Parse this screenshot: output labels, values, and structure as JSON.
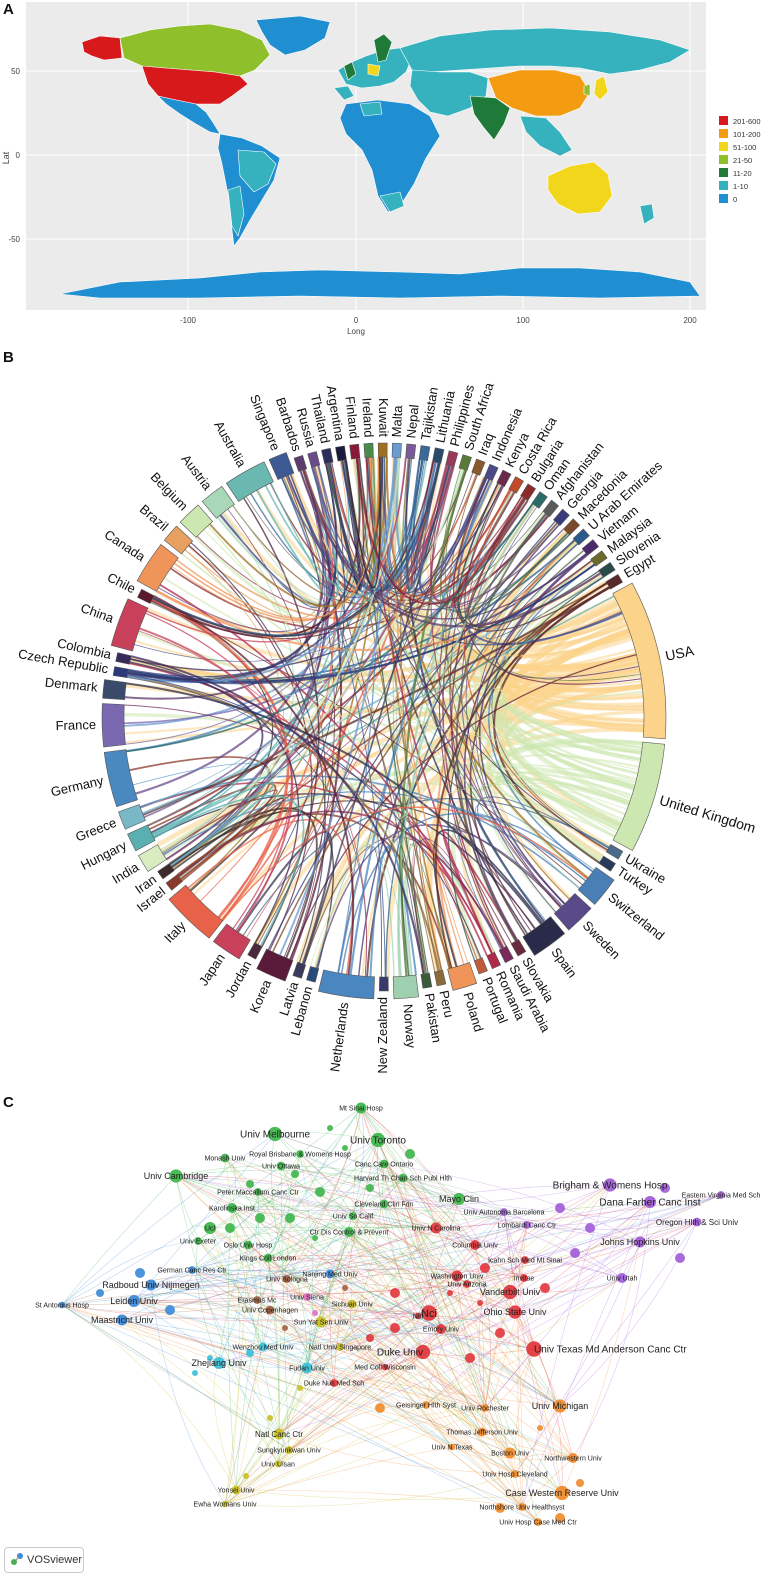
{
  "panel_a": {
    "letter": "A",
    "xlabel": "Long",
    "ylabel": "Lat",
    "x_ticks": [
      "-100",
      "0",
      "100",
      "200"
    ],
    "y_ticks": [
      "50",
      "0",
      "-50"
    ],
    "legend": [
      {
        "label": "201-600",
        "color": "#d7191c"
      },
      {
        "label": "101-200",
        "color": "#f39c12"
      },
      {
        "label": "51-100",
        "color": "#f2d61b"
      },
      {
        "label": "21-50",
        "color": "#8fbf2b"
      },
      {
        "label": "11-20",
        "color": "#1f7a3a"
      },
      {
        "label": "1-10",
        "color": "#35b2bd"
      },
      {
        "label": "0",
        "color": "#1f8fd1"
      }
    ]
  },
  "panel_b": {
    "letter": "B",
    "countries": [
      {
        "name": "Singapore",
        "color": "#3d5a94"
      },
      {
        "name": "Barbados",
        "color": "#5c3b6e"
      },
      {
        "name": "Russia",
        "color": "#6b4c8a"
      },
      {
        "name": "Thailand",
        "color": "#2d2d5c"
      },
      {
        "name": "Argentina",
        "color": "#1a1a3a"
      },
      {
        "name": "Finland",
        "color": "#8b1a3a"
      },
      {
        "name": "Ireland",
        "color": "#4a8a4a"
      },
      {
        "name": "Kuwait",
        "color": "#a07020"
      },
      {
        "name": "Malta",
        "color": "#6a9bd1"
      },
      {
        "name": "Nepal",
        "color": "#7a5a9a"
      },
      {
        "name": "Tajikistan",
        "color": "#3a6a9a"
      },
      {
        "name": "Lithuania",
        "color": "#2a4a6a"
      },
      {
        "name": "Philippines",
        "color": "#9a3a5a"
      },
      {
        "name": "South Africa",
        "color": "#5a7a3a"
      },
      {
        "name": "Iraq",
        "color": "#8a5a2a"
      },
      {
        "name": "Indonesia",
        "color": "#4a4a8a"
      },
      {
        "name": "Kenya",
        "color": "#6a2a4a"
      },
      {
        "name": "Costa Rica",
        "color": "#c04a2a"
      },
      {
        "name": "Bulgaria",
        "color": "#8a2a2a"
      },
      {
        "name": "Oman",
        "color": "#2a6a6a"
      },
      {
        "name": "Afghanistan",
        "color": "#5a5a5a"
      },
      {
        "name": "Georgia",
        "color": "#3a3a7a"
      },
      {
        "name": "Macedonia",
        "color": "#7a4a2a"
      },
      {
        "name": "U Arab Emirates",
        "color": "#2a5a8a"
      },
      {
        "name": "Vietnam",
        "color": "#4a2a6a"
      },
      {
        "name": "Malaysia",
        "color": "#6a6a2a"
      },
      {
        "name": "Slovenia",
        "color": "#2a4a4a"
      },
      {
        "name": "Egypt",
        "color": "#5a2a2a"
      },
      {
        "name": "USA",
        "color": "#fbd38a"
      },
      {
        "name": "United Kingdom",
        "color": "#cde7b0"
      },
      {
        "name": "Ukraine",
        "color": "#4a6a8a"
      },
      {
        "name": "Turkey",
        "color": "#2a3a5a"
      },
      {
        "name": "Switzerland",
        "color": "#4a7fb5"
      },
      {
        "name": "Sweden",
        "color": "#5a4a8a"
      },
      {
        "name": "Spain",
        "color": "#2a2a4a"
      },
      {
        "name": "Slovakia",
        "color": "#6a2a3a"
      },
      {
        "name": "Saudi Arabia",
        "color": "#7a2a5a"
      },
      {
        "name": "Romania",
        "color": "#b02a4a"
      },
      {
        "name": "Portugal",
        "color": "#c05a3a"
      },
      {
        "name": "Poland",
        "color": "#f0955a"
      },
      {
        "name": "Peru",
        "color": "#8a6a3a"
      },
      {
        "name": "Pakistan",
        "color": "#3a5a3a"
      },
      {
        "name": "Norway",
        "color": "#9ed0b0"
      },
      {
        "name": "New Zealand",
        "color": "#3a3a6a"
      },
      {
        "name": "Netherlands",
        "color": "#4a86c0"
      },
      {
        "name": "Lebanon",
        "color": "#2a4a7a"
      },
      {
        "name": "Latvia",
        "color": "#3a3a5a"
      },
      {
        "name": "Korea",
        "color": "#5a1a3a"
      },
      {
        "name": "Jordan",
        "color": "#4a2a3a"
      },
      {
        "name": "Japan",
        "color": "#c8405a"
      },
      {
        "name": "Italy",
        "color": "#e8624a"
      },
      {
        "name": "Israel",
        "color": "#8a3a2a"
      },
      {
        "name": "Iran",
        "color": "#3a2a2a"
      },
      {
        "name": "India",
        "color": "#d8ecc0"
      },
      {
        "name": "Hungary",
        "color": "#5ab0b0"
      },
      {
        "name": "Greece",
        "color": "#7ab8c8"
      },
      {
        "name": "Germany",
        "color": "#4a88c0"
      },
      {
        "name": "France",
        "color": "#7a68b0"
      },
      {
        "name": "Denmark",
        "color": "#3a4a6a"
      },
      {
        "name": "Czech Republic",
        "color": "#2a3a7a"
      },
      {
        "name": "Colombia",
        "color": "#3a2a5a"
      },
      {
        "name": "China",
        "color": "#c8405a"
      },
      {
        "name": "Chile",
        "color": "#5a1a2a"
      },
      {
        "name": "Canada",
        "color": "#f0955a"
      },
      {
        "name": "Brazil",
        "color": "#e8a060"
      },
      {
        "name": "Belgium",
        "color": "#cde7b0"
      },
      {
        "name": "Austria",
        "color": "#a8d8b8"
      },
      {
        "name": "Australia",
        "color": "#6ab8b0"
      }
    ]
  },
  "panel_c": {
    "letter": "C",
    "badge": "VOSviewer",
    "cluster_colors": {
      "green": "#3cb54a",
      "purple": "#a05ad8",
      "red": "#e0353b",
      "blue": "#3a88d8",
      "cyan": "#38c0d8",
      "yellow": "#c8c020",
      "orange": "#f08a28",
      "brown": "#a06040",
      "pink": "#e070c0"
    },
    "labels": [
      {
        "text": "Mt Sinai Hosp",
        "cluster": "green"
      },
      {
        "text": "Univ Melbourne",
        "cluster": "green"
      },
      {
        "text": "Univ Toronto",
        "cluster": "green"
      },
      {
        "text": "Monash Univ",
        "cluster": "green"
      },
      {
        "text": "Royal Brisbane & Womens Hosp",
        "cluster": "green"
      },
      {
        "text": "Univ Ottawa",
        "cluster": "green"
      },
      {
        "text": "Canc Care Ontario",
        "cluster": "green"
      },
      {
        "text": "Univ Cambridge",
        "cluster": "green"
      },
      {
        "text": "Harvard Th Chan Sch Publ Hlth",
        "cluster": "green"
      },
      {
        "text": "Peter Maccallum Canc Ctr",
        "cluster": "green"
      },
      {
        "text": "Karolinska Inst",
        "cluster": "green"
      },
      {
        "text": "Cleveland Clin Fdn",
        "cluster": "green"
      },
      {
        "text": "Mayo Clin",
        "cluster": "green"
      },
      {
        "text": "Univ So Calif",
        "cluster": "green"
      },
      {
        "text": "Ucl",
        "cluster": "green"
      },
      {
        "text": "Ctr Dis Control & Prevent",
        "cluster": "green"
      },
      {
        "text": "Univ Exeter",
        "cluster": "green"
      },
      {
        "text": "Oslo Univ Hosp",
        "cluster": "green"
      },
      {
        "text": "Kings Coll London",
        "cluster": "green"
      },
      {
        "text": "Brigham & Womens Hosp",
        "cluster": "purple"
      },
      {
        "text": "Eastern Virginia Med Sch",
        "cluster": "purple"
      },
      {
        "text": "Dana Farber Canc Inst",
        "cluster": "purple"
      },
      {
        "text": "Oregon Hlth & Sci Univ",
        "cluster": "purple"
      },
      {
        "text": "Johns Hopkins Univ",
        "cluster": "purple"
      },
      {
        "text": "Univ Utah",
        "cluster": "purple"
      },
      {
        "text": "Univ Autonoma Barcelona",
        "cluster": "purple"
      },
      {
        "text": "Lombardi Canc Ctr",
        "cluster": "purple"
      },
      {
        "text": "Univ N Carolina",
        "cluster": "red"
      },
      {
        "text": "Columbia Univ",
        "cluster": "red"
      },
      {
        "text": "Icahn Sch Med Mt Sinai",
        "cluster": "red"
      },
      {
        "text": "Washington Univ",
        "cluster": "red"
      },
      {
        "text": "Invitae",
        "cluster": "red"
      },
      {
        "text": "Univ Arizona",
        "cluster": "red"
      },
      {
        "text": "Vanderbilt Univ",
        "cluster": "red"
      },
      {
        "text": "Nci",
        "cluster": "red"
      },
      {
        "text": "Ohio State Univ",
        "cluster": "red"
      },
      {
        "text": "Emory Univ",
        "cluster": "red"
      },
      {
        "text": "Duke Univ",
        "cluster": "red"
      },
      {
        "text": "Univ Texas Md Anderson Canc Ctr",
        "cluster": "red"
      },
      {
        "text": "Med Coll Wisconsin",
        "cluster": "red"
      },
      {
        "text": "Nih",
        "cluster": "red"
      },
      {
        "text": "Duke Nus Med Sch",
        "cluster": "red"
      },
      {
        "text": "German Canc Res Ctr",
        "cluster": "blue"
      },
      {
        "text": "Radboud Univ Nijmegen",
        "cluster": "blue"
      },
      {
        "text": "St Antonius Hosp",
        "cluster": "blue"
      },
      {
        "text": "Leiden Univ",
        "cluster": "blue"
      },
      {
        "text": "Maastricht Univ",
        "cluster": "blue"
      },
      {
        "text": "Univ Bologna",
        "cluster": "brown"
      },
      {
        "text": "Nanjing Med Univ",
        "cluster": "blue"
      },
      {
        "text": "Erasmus Mc",
        "cluster": "brown"
      },
      {
        "text": "Univ Siena",
        "cluster": "pink"
      },
      {
        "text": "Univ Copenhagen",
        "cluster": "brown"
      },
      {
        "text": "Sichuan Univ",
        "cluster": "yellow"
      },
      {
        "text": "Sun Yat Sen Univ",
        "cluster": "yellow"
      },
      {
        "text": "Natl Univ Singapore",
        "cluster": "yellow"
      },
      {
        "text": "Wenzhou Med Univ",
        "cluster": "cyan"
      },
      {
        "text": "Zhejiang Univ",
        "cluster": "cyan"
      },
      {
        "text": "Fudan Univ",
        "cluster": "cyan"
      },
      {
        "text": "Natl Canc Ctr",
        "cluster": "yellow"
      },
      {
        "text": "Sungkyunkwan Univ",
        "cluster": "yellow"
      },
      {
        "text": "Univ Ulsan",
        "cluster": "yellow"
      },
      {
        "text": "Yonsei Univ",
        "cluster": "yellow"
      },
      {
        "text": "Ewha Womans Univ",
        "cluster": "yellow"
      },
      {
        "text": "Geisinger Hlth Syst",
        "cluster": "orange"
      },
      {
        "text": "Univ Rochester",
        "cluster": "orange"
      },
      {
        "text": "Univ Michigan",
        "cluster": "orange"
      },
      {
        "text": "Thomas Jefferson Univ",
        "cluster": "orange"
      },
      {
        "text": "Univ N Texas",
        "cluster": "orange"
      },
      {
        "text": "Boston Univ",
        "cluster": "orange"
      },
      {
        "text": "Northwestern Univ",
        "cluster": "orange"
      },
      {
        "text": "Univ Hosp Cleveland",
        "cluster": "orange"
      },
      {
        "text": "Case Western Reserve Univ",
        "cluster": "orange"
      },
      {
        "text": "Northshore Univ Healthsyst",
        "cluster": "orange"
      },
      {
        "text": "Univ Hosp Case Med Ctr",
        "cluster": "orange"
      }
    ]
  }
}
